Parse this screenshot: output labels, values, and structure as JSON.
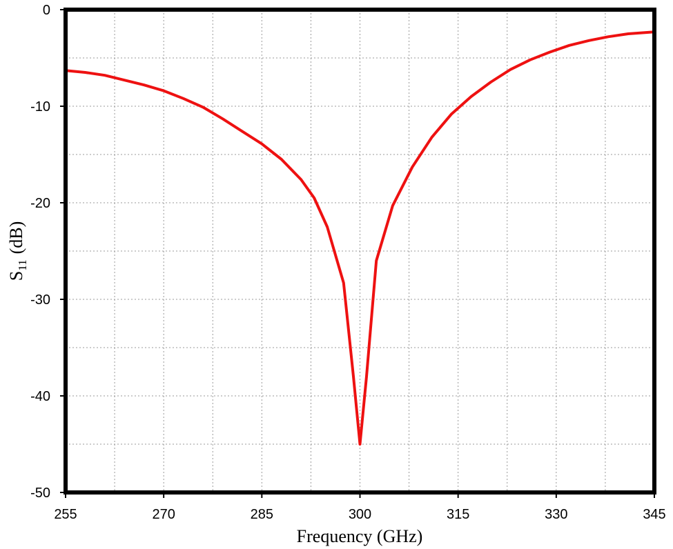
{
  "chart_data": {
    "type": "line",
    "x_label": "Frequency (GHz)",
    "y_label_symbol": "S",
    "y_label_subscript": "11",
    "y_label_unit": "(dB)",
    "x": [
      255,
      258,
      261,
      264,
      267,
      270,
      273,
      276,
      279,
      282,
      285,
      288,
      291,
      293,
      295,
      297.5,
      299,
      300,
      301,
      302.5,
      305,
      308,
      311,
      314,
      317,
      320,
      323,
      326,
      329,
      332,
      335,
      338,
      341,
      345
    ],
    "series": [
      {
        "name": "S11",
        "color": "#ee1111",
        "values": [
          -6.3,
          -6.5,
          -6.8,
          -7.3,
          -7.8,
          -8.4,
          -9.2,
          -10.1,
          -11.3,
          -12.6,
          -13.9,
          -15.5,
          -17.6,
          -19.5,
          -22.5,
          -28.3,
          -38,
          -45,
          -38,
          -26,
          -20.3,
          -16.3,
          -13.2,
          -10.8,
          -9.0,
          -7.5,
          -6.2,
          -5.2,
          -4.4,
          -3.7,
          -3.2,
          -2.8,
          -2.5,
          -2.3
        ]
      }
    ],
    "xlim": [
      255,
      345
    ],
    "xticks": [
      255,
      270,
      285,
      300,
      315,
      330,
      345
    ],
    "ylim": [
      -50,
      0
    ],
    "yticks": [
      -50,
      -40,
      -30,
      -20,
      -10,
      0
    ],
    "grid": true,
    "minor_grid": true
  }
}
